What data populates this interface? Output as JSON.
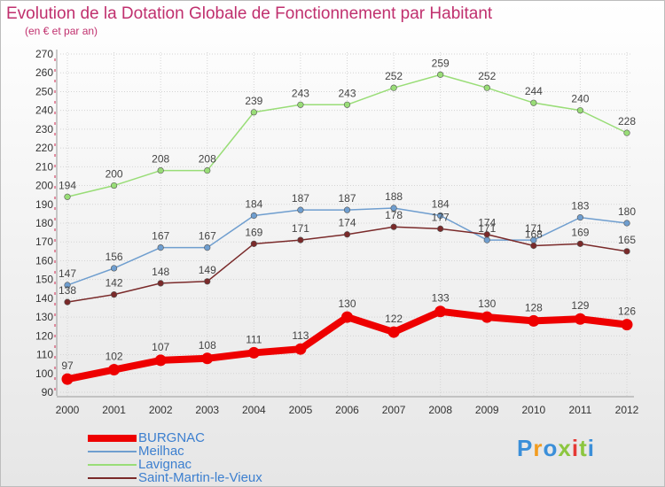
{
  "header": {
    "title": "Evolution de la Dotation Globale de Fonctionnement par Habitant",
    "subtitle": "(en € et par an)"
  },
  "logo": {
    "text": "Proxiti",
    "colors": [
      "#3b8fd9",
      "#f29c1f",
      "#3b8fd9",
      "#8cc63f",
      "#e53935",
      "#8cc63f",
      "#3b8fd9"
    ]
  },
  "chart_data": {
    "type": "line",
    "x": [
      2000,
      2001,
      2002,
      2003,
      2004,
      2005,
      2006,
      2007,
      2008,
      2009,
      2010,
      2011,
      2012
    ],
    "ylim": [
      90,
      270
    ],
    "yticks": [
      90,
      100,
      110,
      120,
      130,
      140,
      150,
      160,
      170,
      180,
      190,
      200,
      210,
      220,
      230,
      240,
      250,
      260,
      270
    ],
    "grid": true,
    "legend_position": "bottom-left",
    "series": [
      {
        "name": "BURGNAC",
        "color": "#ee0000",
        "values": [
          97,
          102,
          107,
          108,
          111,
          113,
          130,
          122,
          133,
          130,
          128,
          129,
          126
        ]
      },
      {
        "name": "Meilhac",
        "color": "#6f9ecf",
        "values": [
          147,
          156,
          167,
          167,
          184,
          187,
          187,
          188,
          184,
          171,
          171,
          183,
          180
        ]
      },
      {
        "name": "Lavignac",
        "color": "#99dd77",
        "values": [
          194,
          200,
          208,
          208,
          239,
          243,
          243,
          252,
          259,
          252,
          244,
          240,
          228
        ]
      },
      {
        "name": "Saint-Martin-le-Vieux",
        "color": "#7a2a2a",
        "values": [
          138,
          142,
          148,
          149,
          169,
          171,
          174,
          178,
          177,
          174,
          168,
          169,
          165
        ]
      }
    ]
  }
}
